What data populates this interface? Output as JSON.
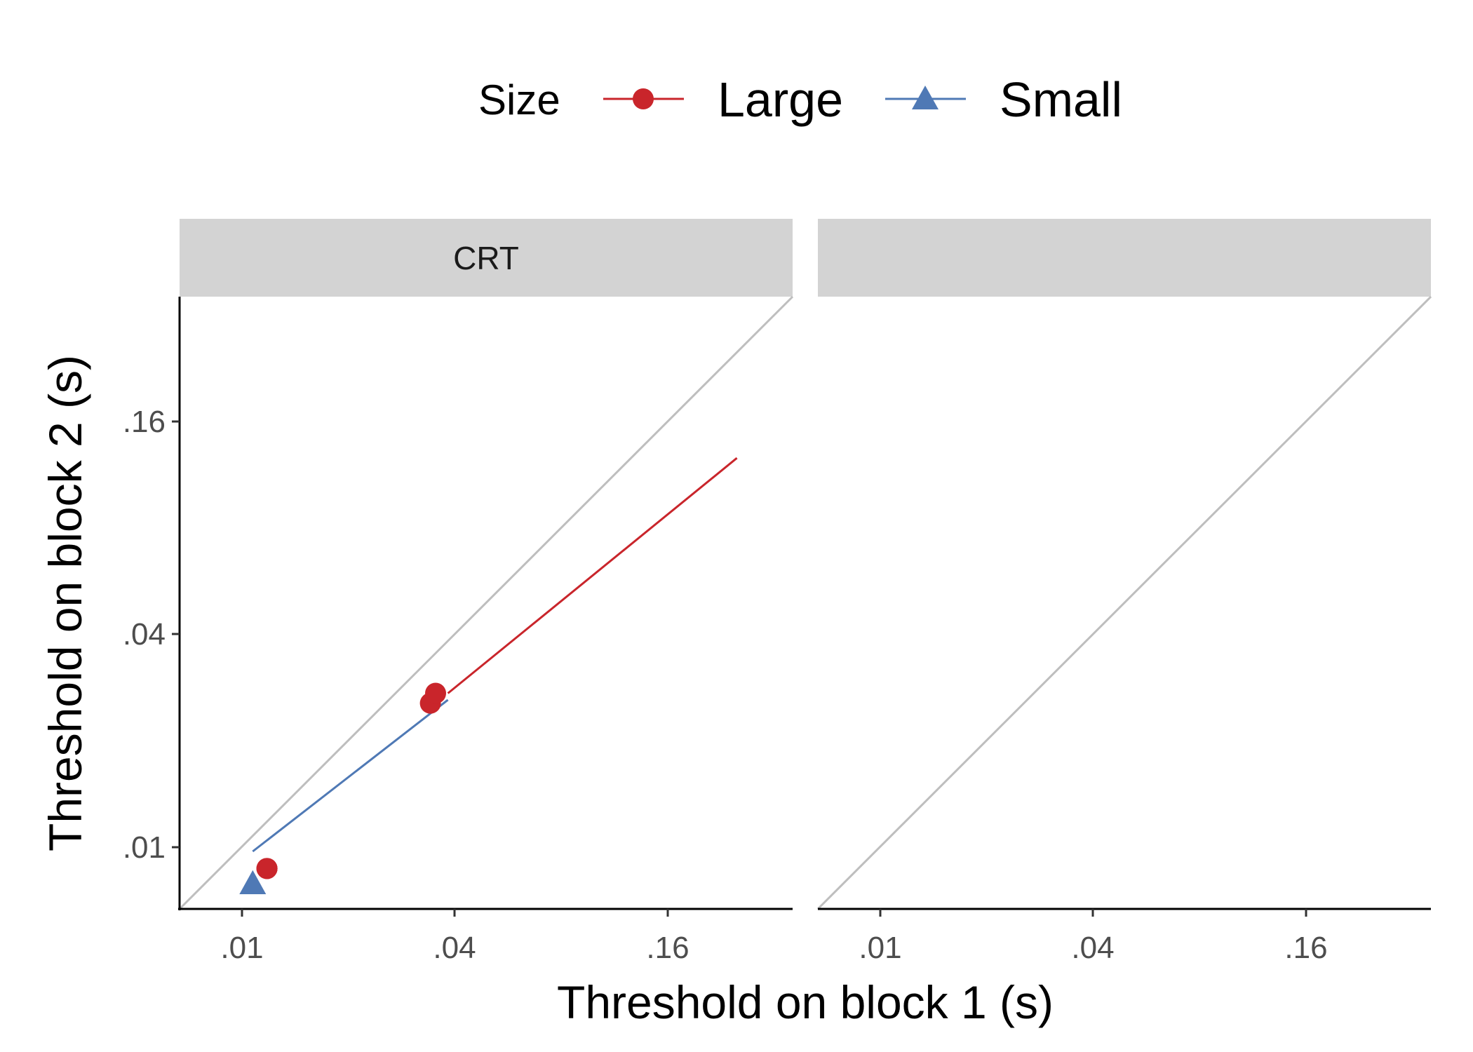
{
  "chart_data": {
    "type": "scatter",
    "xlabel": "Threshold on block 1 (s)",
    "ylabel": "Threshold on block 2 (s)",
    "x_scale": "log",
    "y_scale": "log",
    "xlim": [
      0.0075,
      0.27
    ],
    "ylim": [
      0.0075,
      0.27
    ],
    "x_ticks": [
      0.01,
      0.04,
      0.16
    ],
    "x_tick_labels": [
      ".01",
      ".04",
      ".16"
    ],
    "y_ticks": [
      0.01,
      0.04,
      0.16
    ],
    "y_tick_labels": [
      ".01",
      ".04",
      ".16"
    ],
    "grid": false,
    "identity_line": true,
    "legend": {
      "title": "Size",
      "position": "top",
      "entries": [
        {
          "label": "Large",
          "color": "#c9252b",
          "marker": "circle"
        },
        {
          "label": "Small",
          "color": "#4f79b5",
          "marker": "triangle"
        }
      ]
    },
    "panels": [
      {
        "strip": "CRT",
        "series": [
          {
            "name": "Large",
            "points": [
              [
                0.0325,
                0.025
              ],
              [
                0.0335,
                0.0265
              ],
              [
                0.0125,
                0.0095
              ],
              [
                0.0125,
                0.0095
              ],
              [
                0.0125,
                0.0095
              ]
            ],
            "fit": [
              [
                0.036,
                0.0265
              ],
              [
                0.195,
                0.105
              ]
            ]
          },
          {
            "name": "Small",
            "points": [
              [
                0.0115,
                0.0087
              ]
            ],
            "fit": [
              [
                0.0115,
                0.0105
              ],
              [
                0.036,
                0.0255
              ]
            ]
          }
        ]
      }
    ]
  }
}
